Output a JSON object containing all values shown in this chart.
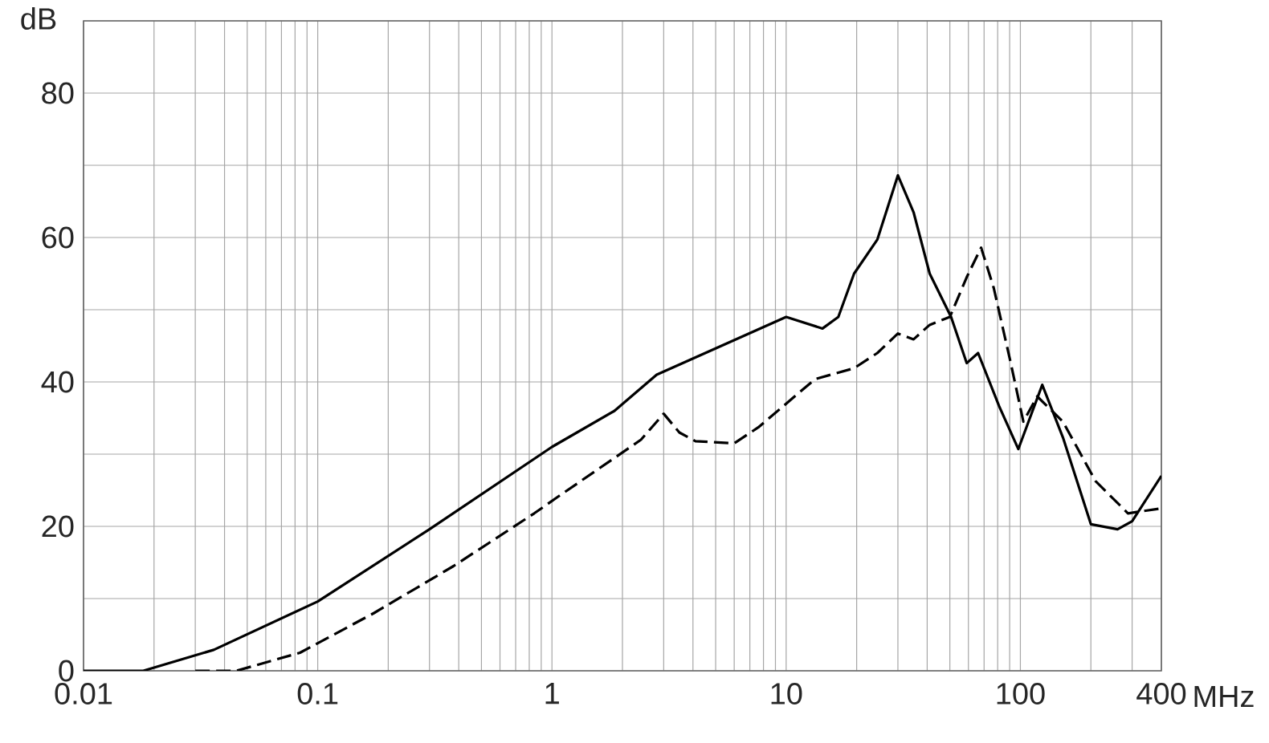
{
  "chart_data": {
    "type": "line",
    "xlabel": "MHz",
    "ylabel": "dB",
    "log": "x",
    "grid": true,
    "xlim": [
      0.01,
      400
    ],
    "ylim": [
      0,
      90
    ],
    "xticks": [
      0.01,
      {
        "value": 0.02,
        "label": null
      },
      {
        "value": 0.03,
        "label": null
      },
      {
        "value": 0.04,
        "label": null
      },
      {
        "value": 0.05,
        "label": null
      },
      {
        "value": 0.06,
        "label": null
      },
      {
        "value": 0.07,
        "label": null
      },
      {
        "value": 0.08,
        "label": null
      },
      {
        "value": 0.09,
        "label": null
      },
      0.1,
      {
        "value": 0.2,
        "label": null
      },
      {
        "value": 0.3,
        "label": null
      },
      {
        "value": 0.4,
        "label": null
      },
      {
        "value": 0.5,
        "label": null
      },
      {
        "value": 0.6,
        "label": null
      },
      {
        "value": 0.7,
        "label": null
      },
      {
        "value": 0.8,
        "label": null
      },
      {
        "value": 0.9,
        "label": null
      },
      1,
      {
        "value": 2,
        "label": null
      },
      {
        "value": 3,
        "label": null
      },
      {
        "value": 4,
        "label": null
      },
      {
        "value": 5,
        "label": null
      },
      {
        "value": 6,
        "label": null
      },
      {
        "value": 7,
        "label": null
      },
      {
        "value": 8,
        "label": null
      },
      {
        "value": 9,
        "label": null
      },
      10,
      {
        "value": 20,
        "label": null
      },
      {
        "value": 30,
        "label": null
      },
      {
        "value": 40,
        "label": null
      },
      {
        "value": 50,
        "label": null
      },
      {
        "value": 60,
        "label": null
      },
      {
        "value": 70,
        "label": null
      },
      {
        "value": 80,
        "label": null
      },
      {
        "value": 90,
        "label": null
      },
      100,
      {
        "value": 200,
        "label": null
      },
      {
        "value": 300,
        "label": null
      },
      400
    ],
    "yticks": [
      0,
      {
        "value": 10,
        "label": null
      },
      20,
      {
        "value": 30,
        "label": null
      },
      40,
      {
        "value": 50,
        "label": null
      },
      60,
      {
        "value": 70,
        "label": null
      },
      80,
      {
        "value": 90,
        "label": null
      }
    ],
    "series": [
      {
        "color": "#000000",
        "line_style": "solid",
        "x": [
          0.01,
          0.018,
          0.036,
          0.1,
          0.3,
          1,
          1.85,
          2.8,
          10,
          14.3,
          16.7,
          19.5,
          24.5,
          30,
          35,
          41,
          50.6,
          59,
          66,
          81,
          98,
          124,
          152,
          200,
          260,
          300,
          400
        ],
        "values": [
          0,
          0,
          2.9,
          9.6,
          19.6,
          31,
          36,
          41,
          49,
          47.4,
          49,
          55,
          59.7,
          68.6,
          63.5,
          55,
          49,
          42.6,
          44,
          36.7,
          30.7,
          39.6,
          32.3,
          20.3,
          19.6,
          20.7,
          27
        ]
      },
      {
        "color": "#000000",
        "line_style": "dashed",
        "x": [
          0.03,
          0.045,
          0.084,
          0.174,
          0.38,
          0.84,
          1.05,
          2.4,
          3.0,
          3.5,
          4.1,
          6.0,
          7.6,
          10.7,
          13.3,
          19.5,
          24.5,
          30,
          35,
          41,
          50,
          59,
          68,
          77,
          91,
          103,
          118,
          152,
          209,
          288,
          400
        ],
        "values": [
          0,
          0,
          2.5,
          8,
          14.5,
          21.8,
          24,
          32,
          35.6,
          33,
          31.8,
          31.5,
          33.7,
          37.8,
          40.4,
          41.9,
          44,
          46.7,
          45.9,
          47.9,
          49,
          54.5,
          58.6,
          53,
          42.6,
          34.5,
          38,
          34.5,
          26.3,
          21.8,
          22.5
        ]
      }
    ]
  }
}
